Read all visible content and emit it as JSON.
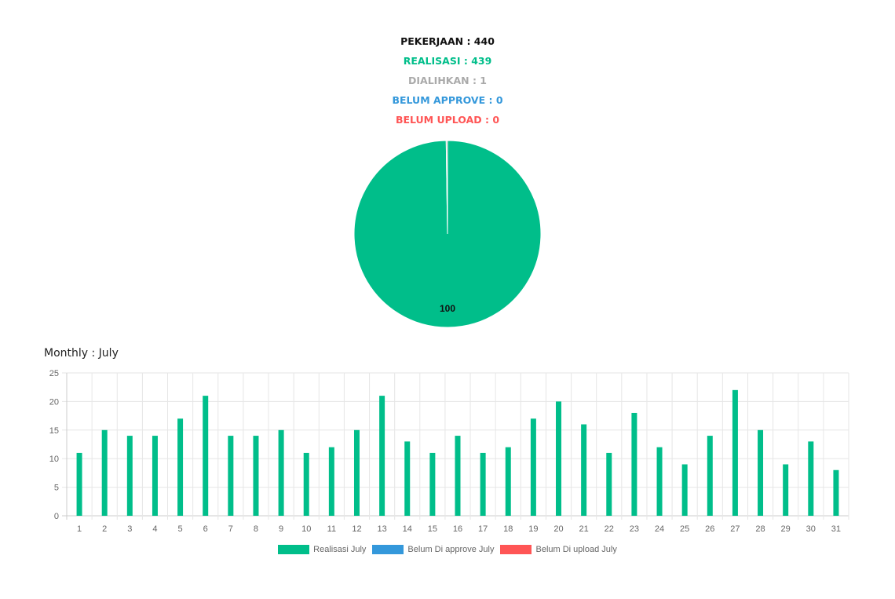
{
  "summary": {
    "pekerjaan": "PEKERJAAN : 440",
    "realisasi": "REALISASI : 439",
    "dialihkan": "DIALIHKAN : 1",
    "belum_approve": "BELUM APPROVE : 0",
    "belum_upload": "BELUM UPLOAD : 0"
  },
  "colors": {
    "pekerjaan": "#111111",
    "realisasi": "#00be8a",
    "dialihkan": "#aaaaaa",
    "belum_approve": "#3498db",
    "belum_upload": "#ff5555",
    "grid": "#e6e6e6",
    "axis": "#cccccc"
  },
  "monthly_title": "Monthly : July",
  "chart_data": [
    {
      "type": "pie",
      "slices": [
        {
          "label": "Realisasi",
          "value": 439,
          "color": "#00be8a"
        },
        {
          "label": "Dialihkan",
          "value": 1,
          "color": "#aaaaaa"
        }
      ],
      "data_labels": [
        "100"
      ]
    },
    {
      "type": "bar",
      "title": "Monthly : July",
      "categories": [
        "1",
        "2",
        "3",
        "4",
        "5",
        "6",
        "7",
        "8",
        "9",
        "10",
        "11",
        "12",
        "13",
        "14",
        "15",
        "16",
        "17",
        "18",
        "19",
        "20",
        "21",
        "22",
        "23",
        "24",
        "25",
        "26",
        "27",
        "28",
        "29",
        "30",
        "31"
      ],
      "series": [
        {
          "name": "Realisasi July",
          "color": "#00be8a",
          "values": [
            11,
            15,
            14,
            14,
            17,
            21,
            14,
            14,
            15,
            11,
            12,
            15,
            21,
            13,
            11,
            14,
            11,
            12,
            17,
            20,
            16,
            11,
            18,
            12,
            9,
            14,
            22,
            15,
            9,
            13,
            8
          ]
        },
        {
          "name": "Belum Di approve July",
          "color": "#3498db",
          "values": [
            0,
            0,
            0,
            0,
            0,
            0,
            0,
            0,
            0,
            0,
            0,
            0,
            0,
            0,
            0,
            0,
            0,
            0,
            0,
            0,
            0,
            0,
            0,
            0,
            0,
            0,
            0,
            0,
            0,
            0,
            0
          ]
        },
        {
          "name": "Belum Di upload July",
          "color": "#ff5555",
          "values": [
            0,
            0,
            0,
            0,
            0,
            0,
            0,
            0,
            0,
            0,
            0,
            0,
            0,
            0,
            0,
            0,
            0,
            0,
            0,
            0,
            0,
            0,
            0,
            0,
            0,
            0,
            0,
            0,
            0,
            0,
            0
          ]
        }
      ],
      "ylim": [
        0,
        25
      ],
      "yticks": [
        0,
        5,
        10,
        15,
        20,
        25
      ],
      "grid": true,
      "legend": "bottom"
    }
  ]
}
